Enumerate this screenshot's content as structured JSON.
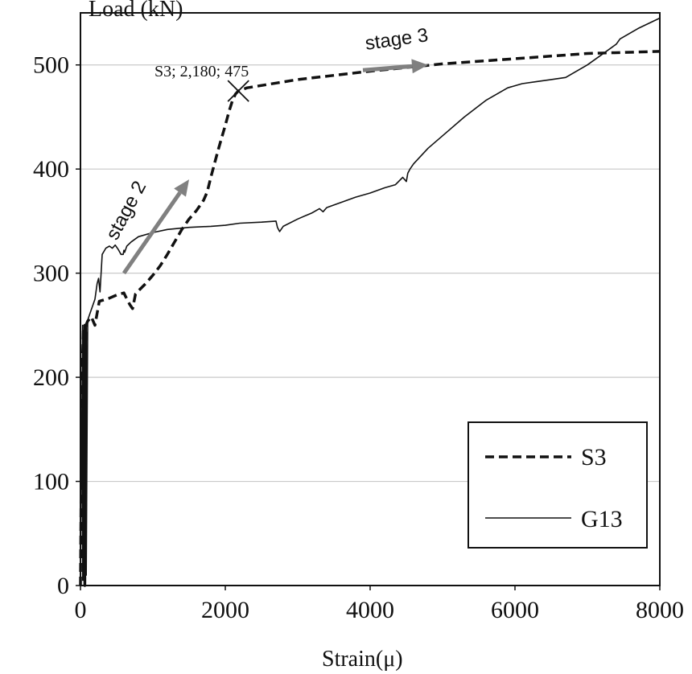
{
  "chart_data": {
    "type": "line",
    "ylabel": "Load (kN)",
    "xlabel": "Strain(μ)",
    "xlim": [
      0,
      8000
    ],
    "ylim": [
      0,
      550
    ],
    "xticks": [
      0,
      2000,
      4000,
      6000,
      8000
    ],
    "yticks": [
      0,
      100,
      200,
      300,
      400,
      500
    ],
    "grid": "horizontal",
    "legend_position": "bottom-right",
    "series": [
      {
        "name": "S3",
        "style": "dashed",
        "x": [
          0,
          20,
          40,
          60,
          60,
          75,
          100,
          150,
          200,
          260,
          400,
          500,
          600,
          620,
          680,
          720,
          760,
          800,
          900,
          1000,
          1100,
          1200,
          1300,
          1400,
          1500,
          1600,
          1650,
          1700,
          1750,
          1800,
          1850,
          1900,
          1950,
          2000,
          2050,
          2100,
          2140,
          2180,
          2300,
          3000,
          4000,
          5000,
          6000,
          7000,
          8000
        ],
        "y": [
          0,
          200,
          245,
          250,
          0,
          250,
          254,
          258,
          250,
          273,
          276,
          279,
          281,
          278,
          270,
          266,
          280,
          283,
          290,
          298,
          307,
          318,
          330,
          342,
          352,
          360,
          365,
          370,
          378,
          392,
          405,
          418,
          430,
          442,
          455,
          466,
          472,
          475,
          478,
          486,
          494,
          501,
          506,
          511,
          513
        ]
      },
      {
        "name": "G13",
        "style": "solid",
        "x": [
          0,
          30,
          30,
          45,
          45,
          60,
          60,
          80,
          80,
          100,
          150,
          200,
          230,
          250,
          270,
          300,
          350,
          400,
          440,
          480,
          520,
          560,
          590,
          600,
          610,
          640,
          700,
          800,
          1000,
          1200,
          1500,
          1800,
          2000,
          2200,
          2500,
          2700,
          2720,
          2750,
          2800,
          3000,
          3200,
          3300,
          3350,
          3400,
          3600,
          3800,
          4000,
          4200,
          4350,
          4450,
          4500,
          4520,
          4550,
          4600,
          4800,
          5000,
          5300,
          5600,
          5900,
          6100,
          6300,
          6500,
          6700,
          7000,
          7200,
          7400,
          7450,
          7700,
          8000
        ],
        "y": [
          0,
          250,
          5,
          245,
          5,
          250,
          5,
          248,
          10,
          255,
          265,
          275,
          290,
          295,
          282,
          318,
          324,
          326,
          324,
          327,
          323,
          318,
          318,
          322,
          320,
          326,
          330,
          335,
          339,
          342,
          344,
          345,
          346,
          348,
          349,
          350,
          344,
          340,
          345,
          352,
          358,
          362,
          359,
          363,
          368,
          373,
          377,
          382,
          385,
          392,
          388,
          396,
          400,
          405,
          420,
          432,
          450,
          466,
          478,
          482,
          484,
          486,
          488,
          500,
          510,
          520,
          525,
          535,
          545
        ]
      }
    ],
    "annotations": [
      {
        "text": "stage 2",
        "rotation_deg": -62
      },
      {
        "text": "stage 3",
        "rotation_deg": -8
      },
      {
        "text": "S3; 2,180; 475",
        "point": [
          2180,
          475
        ],
        "marker": "x"
      }
    ],
    "arrows": [
      {
        "from": [
          600,
          300
        ],
        "to": [
          1500,
          390
        ]
      },
      {
        "from": [
          3900,
          495
        ],
        "to": [
          4800,
          500
        ]
      }
    ],
    "colors": {
      "axis": "#111111",
      "grid": "#c9c9c9",
      "series": "#111111",
      "arrow": "#808080"
    }
  }
}
